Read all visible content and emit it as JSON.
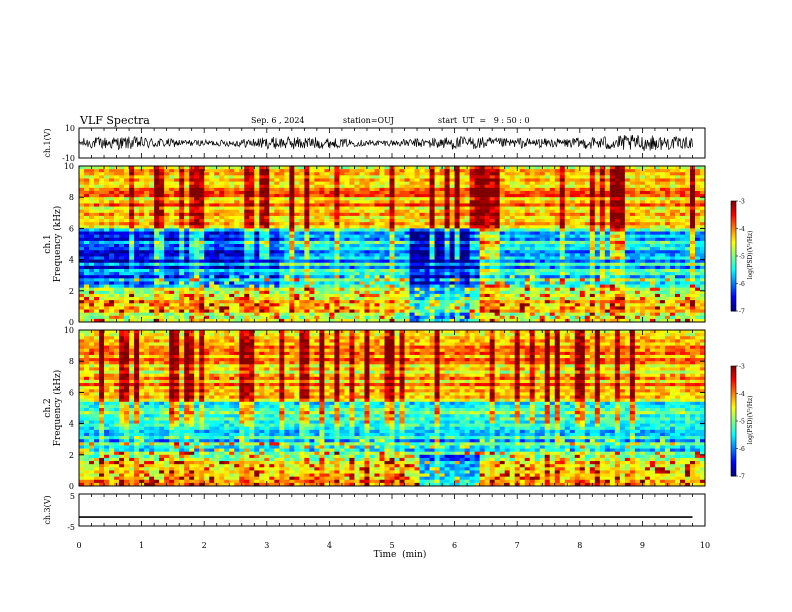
{
  "header": {
    "title": "VLF Spectra",
    "date": "Sep. 6 , 2024",
    "station": "station=OUJ",
    "start_ut": "start  UT  =   9 : 50 : 0"
  },
  "chart_data": [
    {
      "type": "line",
      "name": "ch1-waveform",
      "ylabel": "ch.1(V)",
      "ylim": [
        -10,
        10
      ],
      "y_ticks": [
        "10",
        "-10"
      ],
      "x_range_min": [
        0,
        9.8
      ]
    },
    {
      "type": "heatmap",
      "name": "ch1-spectrogram",
      "ylabel_line1": "ch.1",
      "ylabel_line2": "Frequency (kHz)",
      "xlim": [
        0,
        10
      ],
      "ylim": [
        0,
        10
      ],
      "y_ticks": [
        0,
        2,
        4,
        6,
        8,
        10
      ],
      "colorbar": {
        "label": "log(PSD)(V²/Hz)",
        "ticks": [
          -3,
          -4,
          -5,
          -6,
          -7
        ],
        "range": [
          -7,
          -3
        ]
      }
    },
    {
      "type": "heatmap",
      "name": "ch2-spectrogram",
      "ylabel_line1": "ch.2",
      "ylabel_line2": "Frequency (kHz)",
      "xlim": [
        0,
        10
      ],
      "ylim": [
        0,
        10
      ],
      "y_ticks": [
        0,
        2,
        4,
        6,
        8,
        10
      ],
      "colorbar": {
        "label": "log(PSD)(V²/Hz)",
        "ticks": [
          -3,
          -4,
          -5,
          -6,
          -7
        ],
        "range": [
          -7,
          -3
        ]
      }
    },
    {
      "type": "line",
      "name": "ch3-waveform",
      "ylabel": "ch.3(V)",
      "ylim": [
        -5,
        5
      ],
      "y_ticks": [
        "5",
        "-5"
      ],
      "series": [
        {
          "x": [
            0,
            9.8
          ],
          "y": [
            -2.2,
            -2.2
          ]
        }
      ]
    }
  ],
  "x_axis": {
    "label": "Time  (min)",
    "ticks": [
      "0",
      "1",
      "2",
      "3",
      "4",
      "5",
      "6",
      "7",
      "8",
      "9",
      "10"
    ]
  }
}
